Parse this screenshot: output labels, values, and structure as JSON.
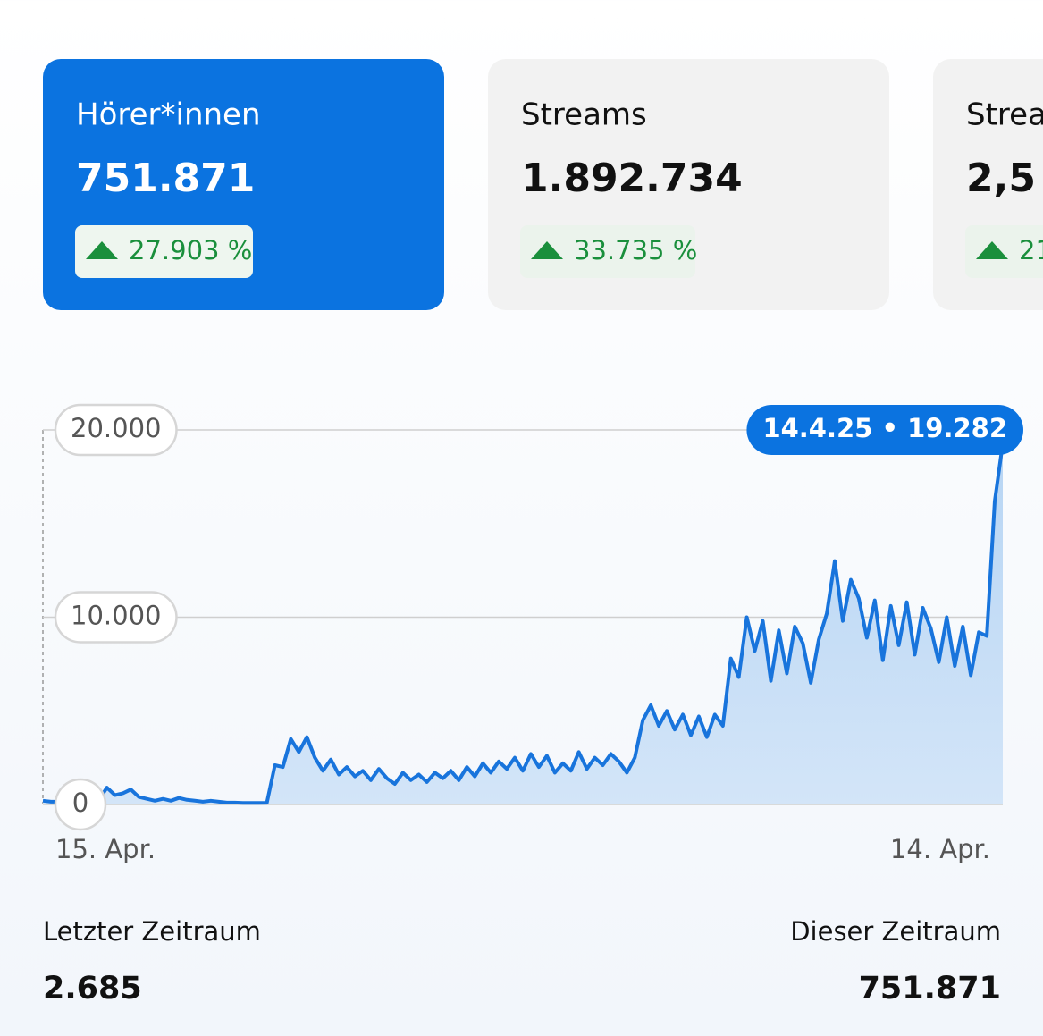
{
  "cards": [
    {
      "title": "Hörer*innen",
      "value": "751.871",
      "change": "27.903 %"
    },
    {
      "title": "Streams",
      "value": "1.892.734",
      "change": "33.735 %"
    },
    {
      "title": "Strea",
      "value": "2,5",
      "change": "21"
    }
  ],
  "chart_data": {
    "type": "area",
    "annotation": "14.4.25 • 19.282",
    "categories": [
      "15. Apr.",
      null,
      null,
      null,
      null,
      null,
      null,
      null,
      null,
      null,
      null,
      null,
      null,
      null,
      null,
      null,
      null,
      null,
      null,
      null,
      null,
      null,
      null,
      null,
      null,
      null,
      null,
      null,
      null,
      null,
      null,
      null,
      null,
      null,
      null,
      null,
      null,
      null,
      null,
      null,
      null,
      null,
      null,
      null,
      null,
      null,
      null,
      null,
      null,
      null,
      null,
      null,
      null,
      null,
      null,
      null,
      null,
      null,
      null,
      null,
      null,
      null,
      null,
      null,
      null,
      null,
      null,
      null,
      null,
      null,
      null,
      null,
      null,
      null,
      null,
      null,
      null,
      null,
      null,
      null,
      null,
      null,
      null,
      null,
      null,
      null,
      null,
      null,
      null,
      null,
      null,
      null,
      null,
      null,
      null,
      null,
      null,
      null,
      null,
      null,
      null,
      null,
      null,
      null,
      null,
      null,
      null,
      null,
      null,
      null,
      null,
      null,
      null,
      null,
      null,
      null,
      null,
      null,
      null,
      null,
      "14. Apr."
    ],
    "values": [
      200,
      150,
      150,
      200,
      300,
      250,
      200,
      250,
      900,
      500,
      600,
      800,
      400,
      300,
      200,
      300,
      200,
      350,
      250,
      200,
      150,
      200,
      150,
      100,
      100,
      80,
      80,
      80,
      90,
      2100,
      2000,
      3500,
      2800,
      3600,
      2500,
      1800,
      2400,
      1600,
      2000,
      1500,
      1800,
      1300,
      1900,
      1400,
      1100,
      1700,
      1300,
      1600,
      1200,
      1700,
      1400,
      1800,
      1300,
      2000,
      1500,
      2200,
      1700,
      2300,
      1900,
      2500,
      1800,
      2700,
      2000,
      2600,
      1700,
      2200,
      1800,
      2800,
      1900,
      2500,
      2100,
      2700,
      2300,
      1700,
      2500,
      4500,
      5300,
      4200,
      5000,
      4000,
      4800,
      3700,
      4700,
      3600,
      4800,
      4200,
      7800,
      6800,
      10000,
      8200,
      9800,
      6600,
      9300,
      7000,
      9500,
      8600,
      6500,
      8800,
      10200,
      13000,
      9800,
      12000,
      11000,
      8900,
      10900,
      7700,
      10600,
      8500,
      10800,
      8000,
      10500,
      9400,
      7600,
      10000,
      7400,
      9500,
      6900,
      9200,
      9000,
      16200,
      19282
    ],
    "color": "#1874dc",
    "ylim": [
      0,
      20000
    ],
    "yticks": [
      0,
      {
        "value": 10000,
        "label": "10.000"
      },
      {
        "value": 20000,
        "label": "20.000"
      }
    ],
    "grid": true
  },
  "footer": {
    "left_label": "Letzter Zeitraum",
    "left_value": "2.685",
    "right_label": "Dieser Zeitraum",
    "right_value": "751.871"
  }
}
